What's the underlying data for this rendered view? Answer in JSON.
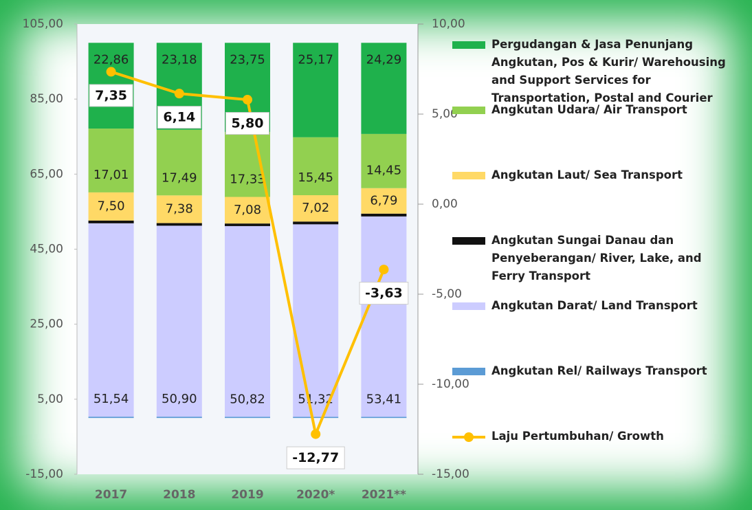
{
  "chart_data": {
    "type": "bar",
    "stacked": true,
    "categories": [
      "2017",
      "2018",
      "2019",
      "2020*",
      "2021**"
    ],
    "ylim": [
      -15,
      105
    ],
    "yticks": [
      {
        "value": -15,
        "label": "-15,00"
      },
      {
        "value": 5,
        "label": "5,00"
      },
      {
        "value": 25,
        "label": "25,00"
      },
      {
        "value": 45,
        "label": "45,00"
      },
      {
        "value": 65,
        "label": "65,00"
      },
      {
        "value": 85,
        "label": "85,00"
      },
      {
        "value": 105,
        "label": "105,00"
      }
    ],
    "y2lim": [
      -15,
      10
    ],
    "y2ticks": [
      {
        "value": -15,
        "label": "-15,00"
      },
      {
        "value": -10,
        "label": "-10,00"
      },
      {
        "value": -5,
        "label": "-5,00"
      },
      {
        "value": 0,
        "label": "0,00"
      },
      {
        "value": 5,
        "label": "5,00"
      },
      {
        "value": 10,
        "label": "10,00"
      }
    ],
    "grid": false,
    "legend": "right",
    "series": [
      {
        "name": "Angkutan Rel/ Railways Transport",
        "color": "#5b9bd5",
        "values": [
          0.35,
          0.35,
          0.33,
          0.3,
          0.31
        ]
      },
      {
        "name": "Angkutan Darat/ Land Transport",
        "color": "#ccccff",
        "values": [
          51.54,
          50.9,
          50.82,
          51.32,
          53.41
        ],
        "value_labels": [
          "51,54",
          "50,90",
          "50,82",
          "51,32",
          "53,41"
        ]
      },
      {
        "name": "Angkutan Sungai Danau dan Penyeberangan/ River, Lake, and Ferry Transport",
        "color": "#111111",
        "values": [
          0.74,
          0.7,
          0.69,
          0.74,
          0.75
        ]
      },
      {
        "name": "Angkutan Laut/ Sea Transport",
        "color": "#ffd966",
        "values": [
          7.5,
          7.38,
          7.08,
          7.02,
          6.79
        ],
        "value_labels": [
          "7,50",
          "7,38",
          "7,08",
          "7,02",
          "6,79"
        ]
      },
      {
        "name": "Angkutan Udara/ Air Transport",
        "color": "#92d050",
        "values": [
          17.01,
          17.49,
          17.33,
          15.45,
          14.45
        ],
        "value_labels": [
          "17,01",
          "17,49",
          "17,33",
          "15,45",
          "14,45"
        ]
      },
      {
        "name": "Pergudangan & Jasa Penunjang Angkutan, Pos & Kurir/ Warehousing and Support Services for Transportation, Postal and Courier",
        "color": "#1fb14c",
        "values": [
          22.86,
          23.18,
          23.75,
          25.17,
          24.29
        ],
        "value_labels": [
          "22,86",
          "23,18",
          "23,75",
          "25,17",
          "24,29"
        ]
      },
      {
        "name": "Laju Pertumbuhan/ Growth",
        "type": "line",
        "axis": "y2",
        "color": "#ffc000",
        "values": [
          7.35,
          6.14,
          5.8,
          -12.77,
          -3.63
        ],
        "value_labels": [
          "7,35",
          "6,14",
          "5,80",
          "-12,77",
          "-3,63"
        ]
      }
    ]
  }
}
